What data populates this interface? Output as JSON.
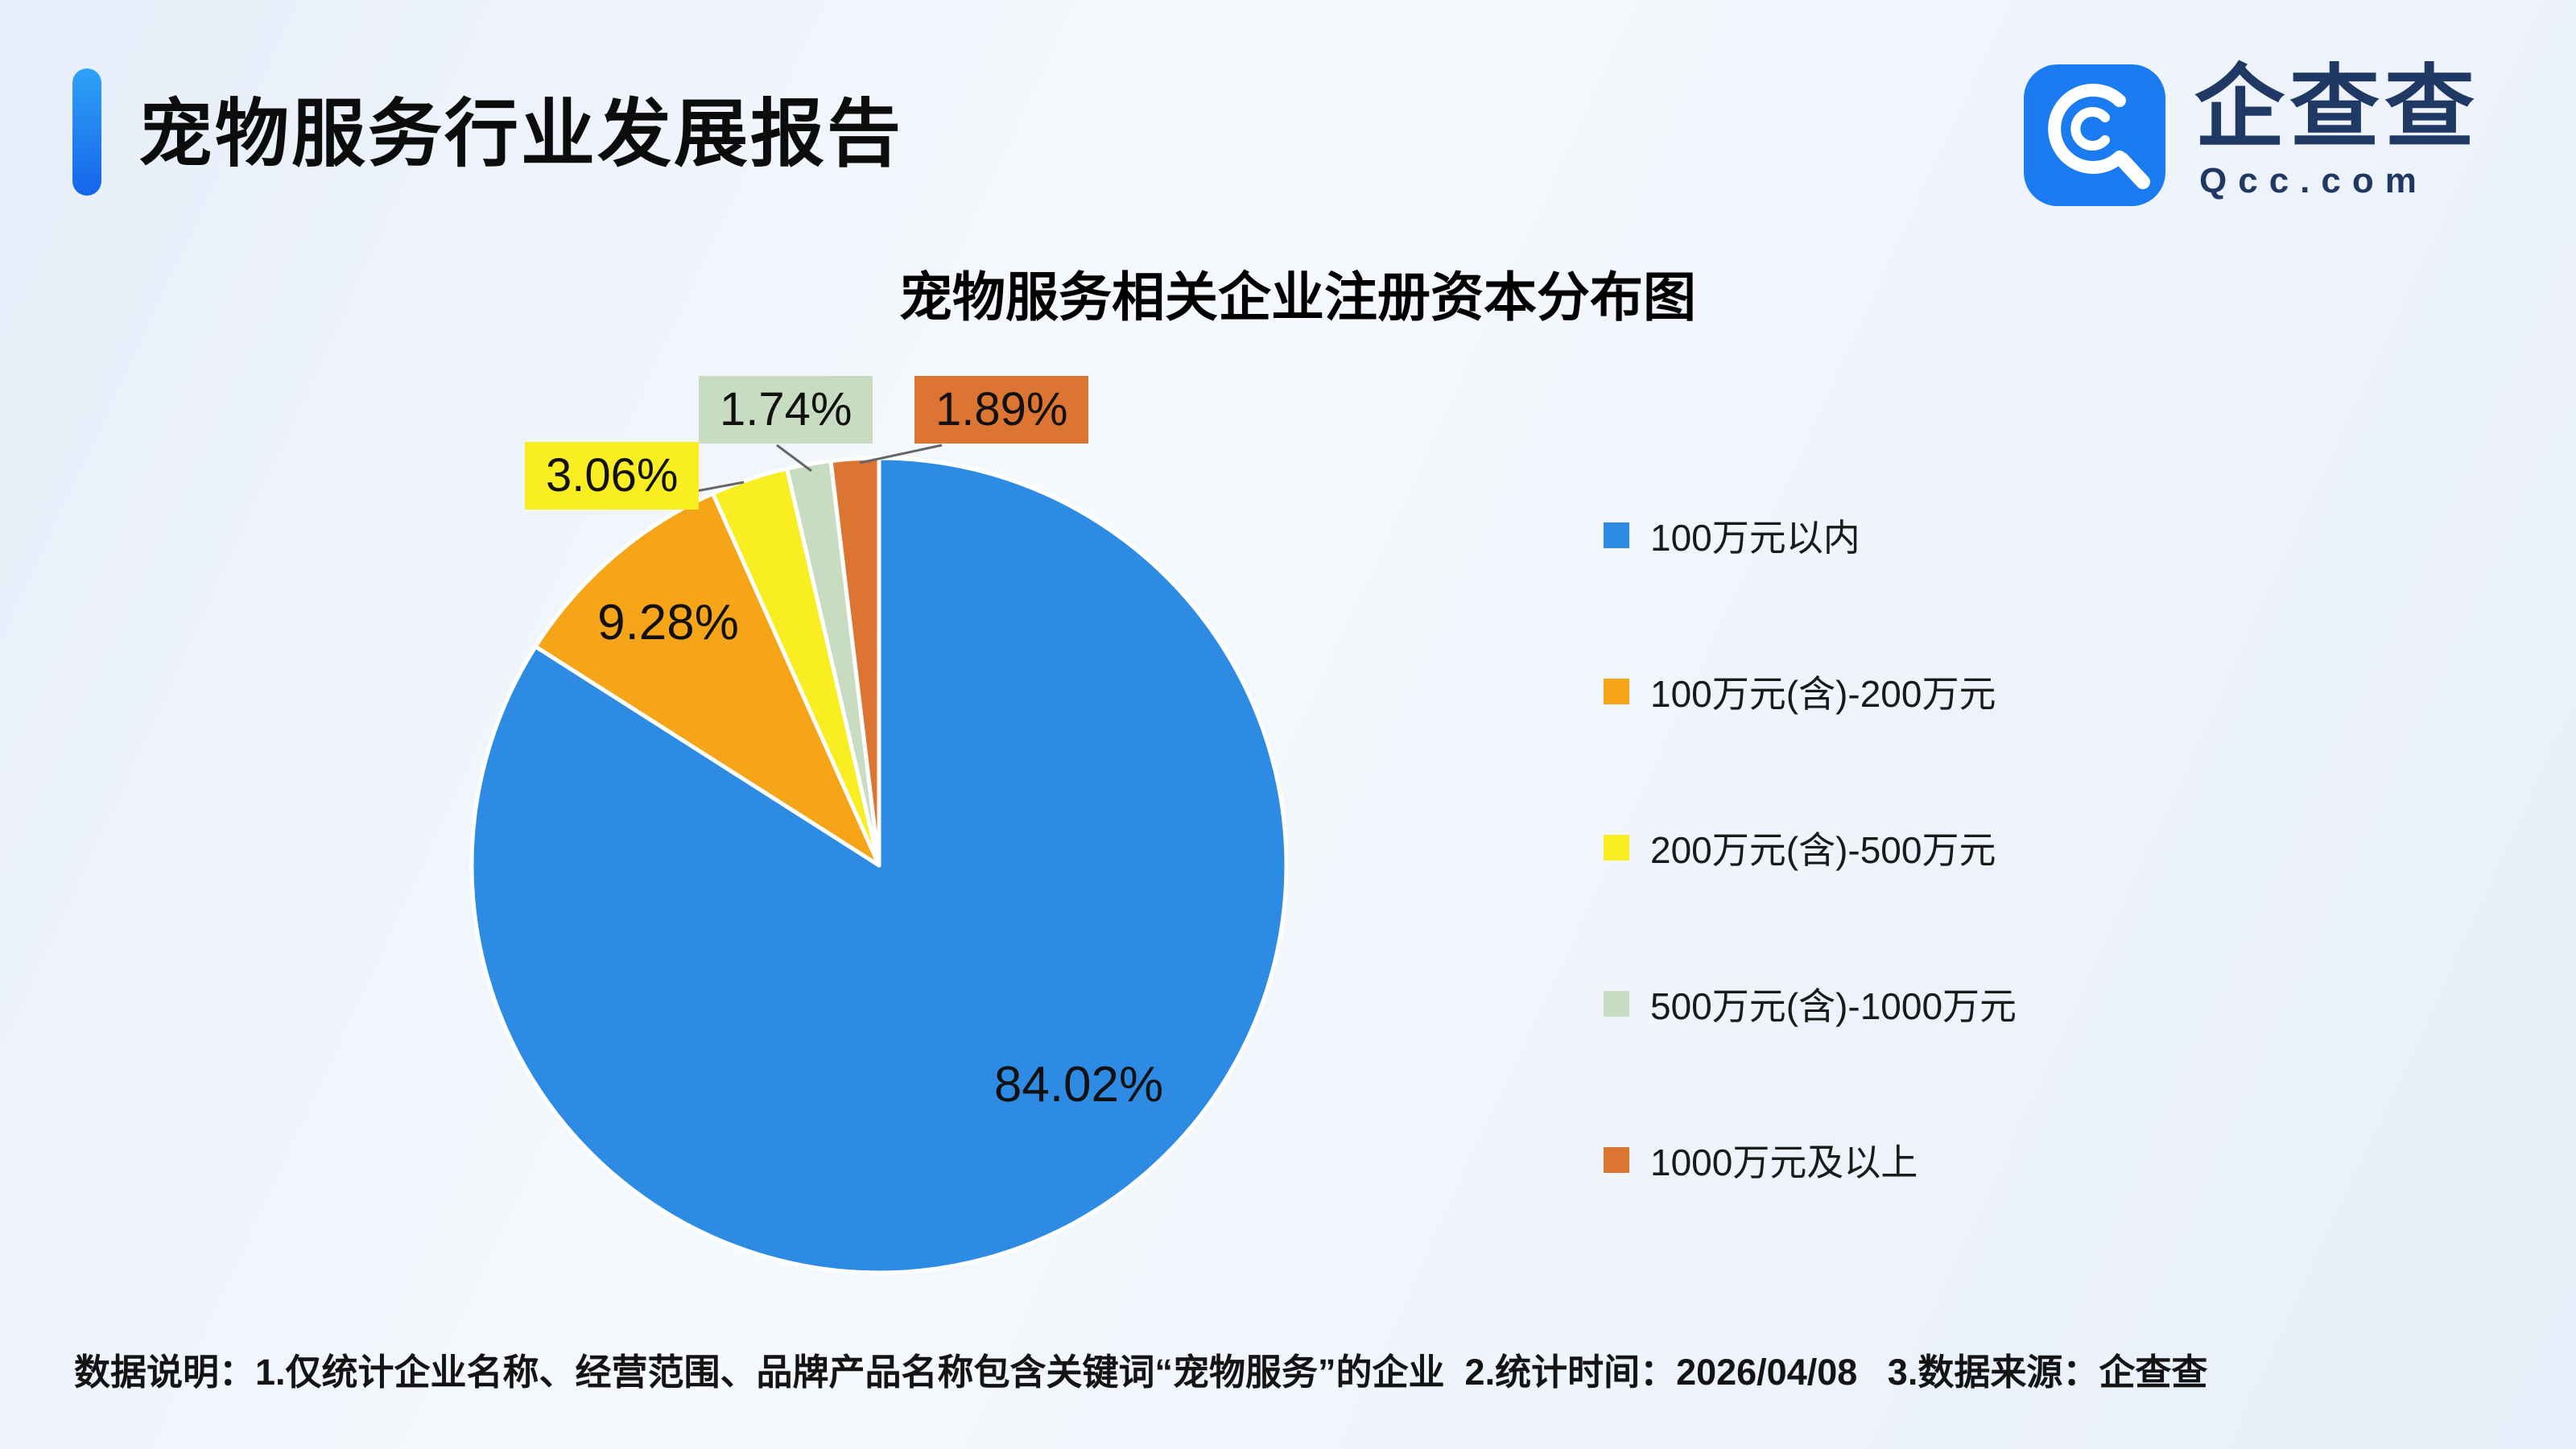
{
  "header": {
    "title": "宠物服务行业发展报告",
    "accent_color": "#1E7BF2"
  },
  "logo": {
    "name": "企查查",
    "domain": "Qcc.com",
    "brand_color": "#1A7CF0",
    "text_color": "#1F3864"
  },
  "chart_data": {
    "type": "pie",
    "title": "宠物服务相关企业注册资本分布图",
    "labels": [
      "100万元以内",
      "100万元(含)-200万元",
      "200万元(含)-500万元",
      "500万元(含)-1000万元",
      "1000万元及以上"
    ],
    "values": [
      84.02,
      9.28,
      3.06,
      1.74,
      1.89
    ],
    "value_labels": [
      "84.02%",
      "9.28%",
      "3.06%",
      "1.74%",
      "1.89%"
    ],
    "colors": [
      "#2E8BE3",
      "#F6A418",
      "#F8EE21",
      "#C8DCC2",
      "#DD7532"
    ],
    "legend_position": "right",
    "start_angle_deg": 0,
    "direction": "clockwise"
  },
  "footer": {
    "note": "数据说明：1.仅统计企业名称、经营范围、品牌产品名称包含关键词“宠物服务”的企业  2.统计时间：2026/04/08   3.数据来源：企查查"
  }
}
